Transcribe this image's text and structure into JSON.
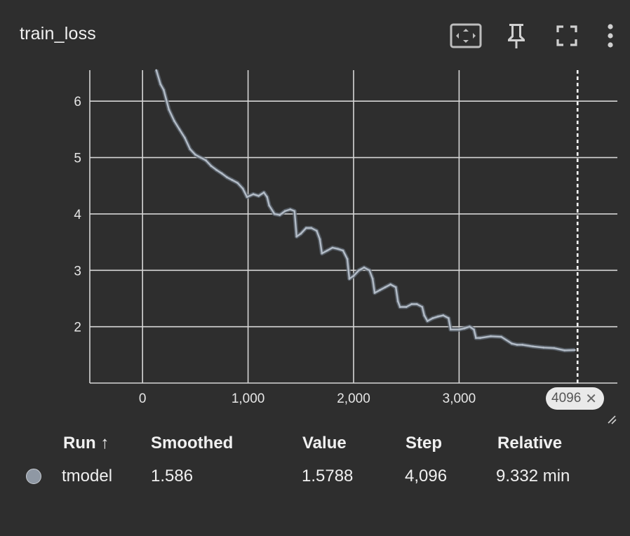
{
  "card": {
    "title": "train_loss"
  },
  "toolbar": {
    "icons": [
      "fit-to-data-icon",
      "pin-icon",
      "fullscreen-icon",
      "more-vert-icon"
    ]
  },
  "colors": {
    "background": "#2e2e2e",
    "grid": "#d6d6d6",
    "series_line": "#b3bcc7",
    "series_raw": "#5e6670",
    "cursor": "#ffffff",
    "run_dot": "#8f98a4"
  },
  "chart_data": {
    "type": "line",
    "title": "train_loss",
    "xlabel": "",
    "ylabel": "",
    "xlim": [
      -500,
      4500
    ],
    "ylim": [
      1,
      6.55
    ],
    "x_ticks": [
      0,
      1000,
      2000,
      3000
    ],
    "x_tick_labels": [
      "0",
      "1,000",
      "2,000",
      "3,000"
    ],
    "y_ticks": [
      2,
      3,
      4,
      5,
      6
    ],
    "y_tick_labels": [
      "2",
      "3",
      "4",
      "5",
      "6"
    ],
    "grid": true,
    "cursor_step": 4096,
    "series": [
      {
        "name": "tmodel",
        "x": [
          130,
          170,
          200,
          250,
          300,
          350,
          400,
          450,
          500,
          550,
          600,
          650,
          700,
          750,
          800,
          850,
          900,
          950,
          990,
          1050,
          1100,
          1150,
          1180,
          1200,
          1250,
          1300,
          1350,
          1400,
          1440,
          1460,
          1500,
          1550,
          1600,
          1650,
          1680,
          1700,
          1750,
          1800,
          1850,
          1900,
          1940,
          1960,
          2000,
          2050,
          2100,
          2150,
          2180,
          2200,
          2250,
          2300,
          2350,
          2400,
          2420,
          2440,
          2500,
          2550,
          2600,
          2650,
          2670,
          2700,
          2750,
          2800,
          2850,
          2900,
          2920,
          3000,
          3050,
          3100,
          3140,
          3160,
          3200,
          3300,
          3400,
          3500,
          3550,
          3600,
          3700,
          3800,
          3900,
          4000,
          4096
        ],
        "values": [
          6.55,
          6.3,
          6.2,
          5.85,
          5.65,
          5.5,
          5.35,
          5.15,
          5.05,
          5.0,
          4.95,
          4.85,
          4.78,
          4.72,
          4.65,
          4.6,
          4.55,
          4.45,
          4.3,
          4.35,
          4.32,
          4.38,
          4.3,
          4.15,
          4.0,
          3.98,
          4.05,
          4.08,
          4.05,
          3.6,
          3.65,
          3.75,
          3.75,
          3.7,
          3.55,
          3.3,
          3.35,
          3.4,
          3.38,
          3.35,
          3.2,
          2.85,
          2.9,
          3.0,
          3.05,
          3.0,
          2.85,
          2.6,
          2.65,
          2.7,
          2.75,
          2.7,
          2.45,
          2.35,
          2.35,
          2.4,
          2.4,
          2.35,
          2.2,
          2.1,
          2.15,
          2.18,
          2.2,
          2.15,
          1.95,
          1.95,
          1.97,
          2.0,
          1.95,
          1.8,
          1.8,
          1.83,
          1.82,
          1.7,
          1.68,
          1.68,
          1.65,
          1.63,
          1.62,
          1.58,
          1.586
        ]
      }
    ]
  },
  "step_badge": {
    "label": "4096",
    "close": "✕"
  },
  "table": {
    "headers": {
      "run": "Run ↑",
      "smoothed": "Smoothed",
      "value": "Value",
      "step": "Step",
      "relative": "Relative"
    },
    "rows": [
      {
        "run": "tmodel",
        "smoothed": "1.586",
        "value": "1.5788",
        "step": "4,096",
        "relative": "9.332 min"
      }
    ]
  }
}
